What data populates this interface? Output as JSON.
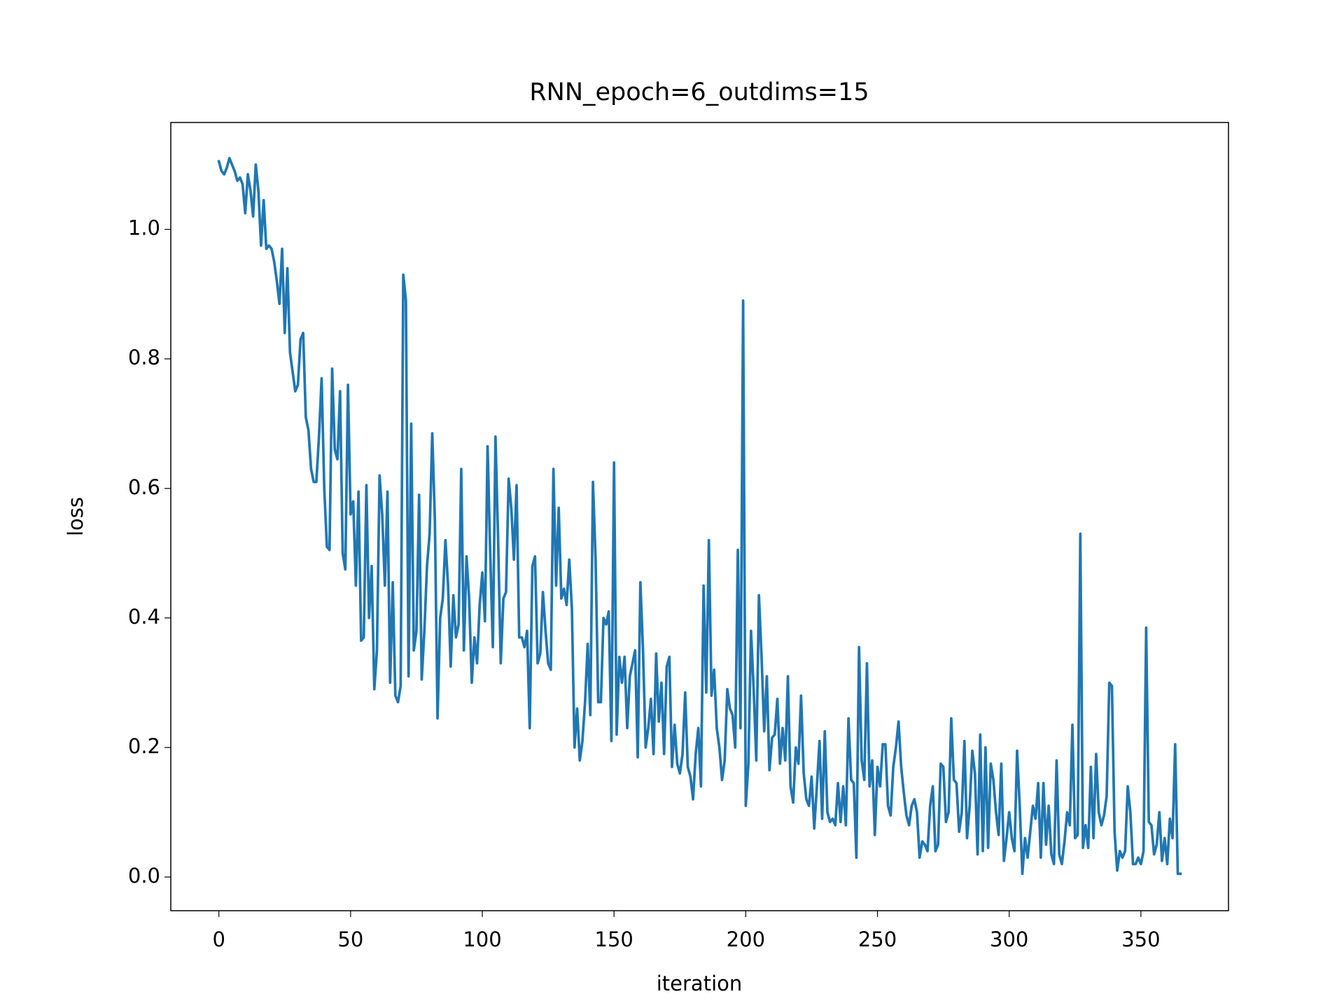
{
  "chart_data": {
    "type": "line",
    "title": "RNN_epoch=6_outdims=15",
    "x_label": "iteration",
    "y_label": "loss",
    "color": "#1f77b4",
    "x": [
      0,
      1,
      2,
      3,
      4,
      5,
      6,
      7,
      8,
      9,
      10,
      11,
      12,
      13,
      14,
      15,
      16,
      17,
      18,
      19,
      20,
      21,
      22,
      23,
      24,
      25,
      26,
      27,
      28,
      29,
      30,
      31,
      32,
      33,
      34,
      35,
      36,
      37,
      38,
      39,
      40,
      41,
      42,
      43,
      44,
      45,
      46,
      47,
      48,
      49,
      50,
      51,
      52,
      53,
      54,
      55,
      56,
      57,
      58,
      59,
      60,
      61,
      62,
      63,
      64,
      65,
      66,
      67,
      68,
      69,
      70,
      71,
      72,
      73,
      74,
      75,
      76,
      77,
      78,
      79,
      80,
      81,
      82,
      83,
      84,
      85,
      86,
      87,
      88,
      89,
      90,
      91,
      92,
      93,
      94,
      95,
      96,
      97,
      98,
      99,
      100,
      101,
      102,
      103,
      104,
      105,
      106,
      107,
      108,
      109,
      110,
      111,
      112,
      113,
      114,
      115,
      116,
      117,
      118,
      119,
      120,
      121,
      122,
      123,
      124,
      125,
      126,
      127,
      128,
      129,
      130,
      131,
      132,
      133,
      134,
      135,
      136,
      137,
      138,
      139,
      140,
      141,
      142,
      143,
      144,
      145,
      146,
      147,
      148,
      149,
      150,
      151,
      152,
      153,
      154,
      155,
      156,
      157,
      158,
      159,
      160,
      161,
      162,
      163,
      164,
      165,
      166,
      167,
      168,
      169,
      170,
      171,
      172,
      173,
      174,
      175,
      176,
      177,
      178,
      179,
      180,
      181,
      182,
      183,
      184,
      185,
      186,
      187,
      188,
      189,
      190,
      191,
      192,
      193,
      194,
      195,
      196,
      197,
      198,
      199,
      200,
      201,
      202,
      203,
      204,
      205,
      206,
      207,
      208,
      209,
      210,
      211,
      212,
      213,
      214,
      215,
      216,
      217,
      218,
      219,
      220,
      221,
      222,
      223,
      224,
      225,
      226,
      227,
      228,
      229,
      230,
      231,
      232,
      233,
      234,
      235,
      236,
      237,
      238,
      239,
      240,
      241,
      242,
      243,
      244,
      245,
      246,
      247,
      248,
      249,
      250,
      251,
      252,
      253,
      254,
      255,
      256,
      257,
      258,
      259,
      260,
      261,
      262,
      263,
      264,
      265,
      266,
      267,
      268,
      269,
      270,
      271,
      272,
      273,
      274,
      275,
      276,
      277,
      278,
      279,
      280,
      281,
      282,
      283,
      284,
      285,
      286,
      287,
      288,
      289,
      290,
      291,
      292,
      293,
      294,
      295,
      296,
      297,
      298,
      299,
      300,
      301,
      302,
      303,
      304,
      305,
      306,
      307,
      308,
      309,
      310,
      311,
      312,
      313,
      314,
      315,
      316,
      317,
      318,
      319,
      320,
      321,
      322,
      323,
      324,
      325,
      326,
      327,
      328,
      329,
      330,
      331,
      332,
      333,
      334,
      335,
      336,
      337,
      338,
      339,
      340,
      341,
      342,
      343,
      344,
      345,
      346,
      347,
      348,
      349,
      350,
      351,
      352,
      353,
      354,
      355,
      356,
      357,
      358,
      359,
      360,
      361,
      362,
      363,
      364,
      365
    ],
    "values": [
      1.105,
      1.09,
      1.085,
      1.095,
      1.11,
      1.1,
      1.09,
      1.075,
      1.08,
      1.07,
      1.025,
      1.085,
      1.06,
      1.02,
      1.1,
      1.06,
      0.975,
      1.045,
      0.97,
      0.975,
      0.97,
      0.95,
      0.92,
      0.885,
      0.97,
      0.84,
      0.94,
      0.81,
      0.78,
      0.75,
      0.76,
      0.83,
      0.84,
      0.71,
      0.69,
      0.63,
      0.61,
      0.61,
      0.68,
      0.77,
      0.6,
      0.51,
      0.505,
      0.785,
      0.66,
      0.645,
      0.75,
      0.5,
      0.475,
      0.76,
      0.56,
      0.58,
      0.45,
      0.595,
      0.365,
      0.37,
      0.605,
      0.4,
      0.48,
      0.29,
      0.35,
      0.62,
      0.56,
      0.45,
      0.595,
      0.3,
      0.455,
      0.28,
      0.27,
      0.295,
      0.93,
      0.89,
      0.31,
      0.7,
      0.35,
      0.38,
      0.59,
      0.305,
      0.38,
      0.48,
      0.53,
      0.685,
      0.55,
      0.245,
      0.4,
      0.43,
      0.52,
      0.45,
      0.325,
      0.435,
      0.37,
      0.39,
      0.63,
      0.35,
      0.495,
      0.43,
      0.3,
      0.37,
      0.33,
      0.42,
      0.47,
      0.395,
      0.665,
      0.5,
      0.355,
      0.68,
      0.52,
      0.33,
      0.43,
      0.44,
      0.615,
      0.57,
      0.49,
      0.605,
      0.37,
      0.37,
      0.355,
      0.38,
      0.23,
      0.48,
      0.495,
      0.33,
      0.345,
      0.44,
      0.38,
      0.33,
      0.32,
      0.63,
      0.45,
      0.57,
      0.43,
      0.445,
      0.42,
      0.49,
      0.415,
      0.2,
      0.26,
      0.18,
      0.21,
      0.27,
      0.36,
      0.25,
      0.61,
      0.49,
      0.27,
      0.27,
      0.4,
      0.39,
      0.41,
      0.21,
      0.64,
      0.22,
      0.34,
      0.3,
      0.34,
      0.23,
      0.31,
      0.33,
      0.35,
      0.185,
      0.455,
      0.35,
      0.2,
      0.23,
      0.275,
      0.19,
      0.345,
      0.24,
      0.3,
      0.19,
      0.325,
      0.34,
      0.17,
      0.235,
      0.175,
      0.16,
      0.19,
      0.285,
      0.17,
      0.155,
      0.12,
      0.19,
      0.23,
      0.14,
      0.45,
      0.285,
      0.52,
      0.28,
      0.32,
      0.23,
      0.2,
      0.15,
      0.18,
      0.29,
      0.26,
      0.25,
      0.2,
      0.505,
      0.23,
      0.89,
      0.11,
      0.175,
      0.38,
      0.29,
      0.18,
      0.435,
      0.34,
      0.225,
      0.31,
      0.165,
      0.215,
      0.22,
      0.275,
      0.175,
      0.23,
      0.18,
      0.31,
      0.14,
      0.115,
      0.2,
      0.175,
      0.28,
      0.16,
      0.12,
      0.11,
      0.155,
      0.075,
      0.14,
      0.21,
      0.09,
      0.225,
      0.1,
      0.085,
      0.09,
      0.08,
      0.145,
      0.085,
      0.14,
      0.08,
      0.245,
      0.15,
      0.145,
      0.03,
      0.355,
      0.18,
      0.15,
      0.33,
      0.14,
      0.18,
      0.065,
      0.17,
      0.14,
      0.205,
      0.205,
      0.11,
      0.095,
      0.17,
      0.2,
      0.24,
      0.17,
      0.13,
      0.095,
      0.08,
      0.11,
      0.12,
      0.1,
      0.03,
      0.055,
      0.05,
      0.04,
      0.11,
      0.14,
      0.04,
      0.05,
      0.175,
      0.17,
      0.085,
      0.1,
      0.245,
      0.15,
      0.145,
      0.07,
      0.1,
      0.21,
      0.06,
      0.11,
      0.195,
      0.16,
      0.035,
      0.22,
      0.04,
      0.2,
      0.045,
      0.175,
      0.15,
      0.1,
      0.065,
      0.175,
      0.025,
      0.06,
      0.1,
      0.06,
      0.04,
      0.195,
      0.11,
      0.005,
      0.06,
      0.03,
      0.07,
      0.11,
      0.09,
      0.145,
      0.03,
      0.145,
      0.05,
      0.11,
      0.035,
      0.02,
      0.18,
      0.035,
      0.02,
      0.055,
      0.1,
      0.08,
      0.235,
      0.06,
      0.065,
      0.53,
      0.045,
      0.08,
      0.045,
      0.17,
      0.06,
      0.19,
      0.1,
      0.08,
      0.095,
      0.125,
      0.3,
      0.295,
      0.07,
      0.01,
      0.04,
      0.03,
      0.04,
      0.14,
      0.1,
      0.02,
      0.02,
      0.03,
      0.02,
      0.04,
      0.385,
      0.085,
      0.08,
      0.035,
      0.05,
      0.1,
      0.025,
      0.06,
      0.02,
      0.09,
      0.06,
      0.205,
      0.005,
      0.005
    ],
    "xlim": [
      -18.25,
      383.25
    ],
    "ylim": [
      -0.052,
      1.165
    ],
    "xticks": [
      0,
      50,
      100,
      150,
      200,
      250,
      300,
      350
    ],
    "yticks": [
      {
        "value": 0,
        "label": "0.0"
      },
      0.2,
      0.4,
      0.6,
      0.8,
      {
        "value": 1,
        "label": "1.0"
      }
    ]
  }
}
